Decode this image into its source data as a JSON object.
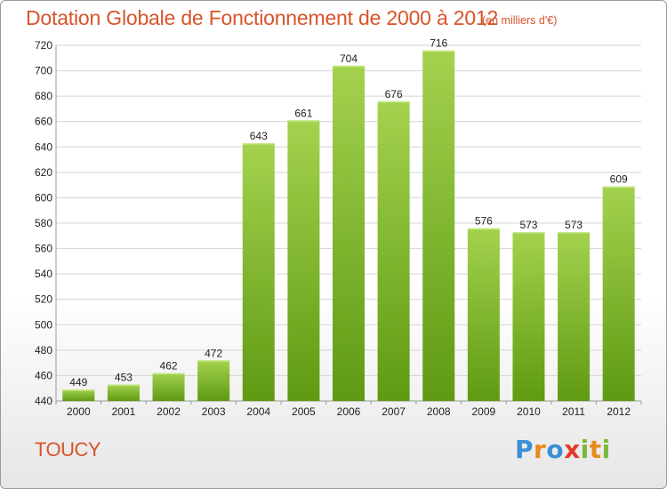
{
  "header": {
    "title": "Dotation Globale de Fonctionnement de 2000 à 2012",
    "subtitle": "(en milliers d'€)"
  },
  "footer": {
    "town": "TOUCY",
    "logo": {
      "letters": [
        "P",
        "r",
        "o",
        "x",
        "i",
        "t",
        "i"
      ],
      "colors": [
        "#3a8fd6",
        "#e8891d",
        "#3a8fd6",
        "#e23a2a",
        "#7ab83a",
        "#e8891d",
        "#7ab83a"
      ]
    }
  },
  "colors": {
    "bar_top": "#a4d24e",
    "bar_bottom": "#5f9a12",
    "grid": "#d4d4d4",
    "axis": "#9a9a9a",
    "accent": "#d8542a"
  },
  "chart_data": {
    "type": "bar",
    "categories": [
      "2000",
      "2001",
      "2002",
      "2003",
      "2004",
      "2005",
      "2006",
      "2007",
      "2008",
      "2009",
      "2010",
      "2011",
      "2012"
    ],
    "values": [
      449,
      453,
      462,
      472,
      643,
      661,
      704,
      676,
      716,
      576,
      573,
      573,
      609
    ],
    "title": "Dotation Globale de Fonctionnement de 2000 à 2012",
    "subtitle": "(en milliers d'€)",
    "xlabel": "",
    "ylabel": "",
    "ylim": [
      440,
      720
    ],
    "yticks": [
      440,
      460,
      480,
      500,
      520,
      540,
      560,
      580,
      600,
      620,
      640,
      660,
      680,
      700,
      720
    ],
    "grid": true,
    "legend": "none"
  }
}
